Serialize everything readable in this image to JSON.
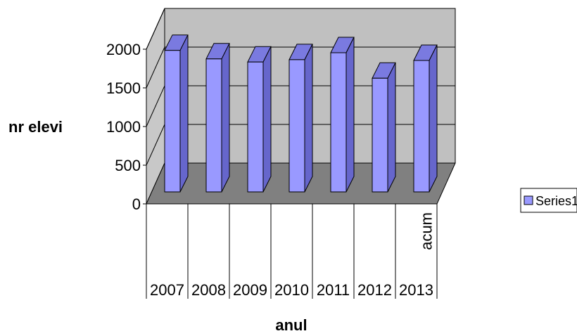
{
  "chart_data": {
    "type": "bar",
    "title": "",
    "xlabel": "anul",
    "ylabel": "nr elevi",
    "categories": [
      "2007",
      "2008",
      "2009",
      "2010",
      "2011",
      "2012",
      "2013"
    ],
    "category_sublabels": [
      "",
      "",
      "",
      "",
      "",
      "",
      "acum"
    ],
    "series": [
      {
        "name": "Series1",
        "values": [
          1830,
          1720,
          1680,
          1710,
          1800,
          1470,
          1700
        ]
      }
    ],
    "ylim": [
      0,
      2000
    ],
    "yticks": [
      0,
      500,
      1000,
      1500,
      2000
    ],
    "grid": true,
    "legend": "right",
    "three_d": true,
    "colors": {
      "bar_front": "#9999ff",
      "bar_side": "#6666cc",
      "bar_top": "#7a7ae0",
      "back_wall": "#c0c0c0",
      "side_wall": "#c8c8c8",
      "floor": "#808080",
      "line": "#000000"
    }
  }
}
